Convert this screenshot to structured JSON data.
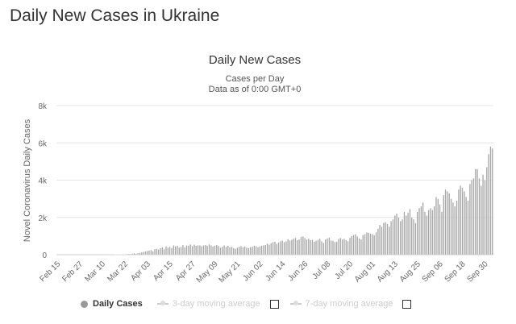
{
  "page_title": "Daily New Cases in Ukraine",
  "chart_data": {
    "type": "bar",
    "title": "Daily New Cases",
    "subtitle_1": "Cases per Day",
    "subtitle_2": "Data as of 0:00 GMT+0",
    "ylabel": "Novel Coronavirus Daily Cases",
    "xlabel": "",
    "ylim": [
      0,
      8000
    ],
    "y_ticks": [
      "0",
      "2k",
      "4k",
      "6k",
      "8k"
    ],
    "x_tick_labels": [
      "Feb 15",
      "Feb 27",
      "Mar 10",
      "Mar 22",
      "Apr 03",
      "Apr 15",
      "Apr 27",
      "May 09",
      "May 21",
      "Jun 02",
      "Jun 14",
      "Jun 26",
      "Jul 08",
      "Jul 20",
      "Aug 01",
      "Aug 13",
      "Aug 25",
      "Sep 06",
      "Sep 18",
      "Sep 30"
    ],
    "x_tick_every_days": 12,
    "grid": true,
    "bar_color": "#a6a6a6",
    "values": [
      0,
      0,
      0,
      0,
      0,
      0,
      0,
      0,
      0,
      0,
      0,
      0,
      0,
      0,
      0,
      0,
      0,
      0,
      0,
      0,
      0,
      0,
      0,
      0,
      0,
      1,
      1,
      2,
      1,
      3,
      4,
      5,
      10,
      9,
      14,
      20,
      15,
      30,
      40,
      35,
      60,
      75,
      50,
      80,
      100,
      120,
      150,
      180,
      200,
      220,
      250,
      180,
      300,
      320,
      280,
      350,
      400,
      300,
      450,
      380,
      420,
      360,
      500,
      450,
      480,
      380,
      420,
      520,
      400,
      500,
      480,
      550,
      460,
      540,
      480,
      510,
      500,
      450,
      500,
      520,
      480,
      550,
      500,
      450,
      480,
      520,
      470,
      380,
      420,
      500,
      430,
      480,
      400,
      420,
      350,
      320,
      380,
      420,
      460,
      400,
      440,
      380,
      350,
      400,
      430,
      480,
      460,
      400,
      450,
      480,
      500,
      520,
      600,
      540,
      620,
      680,
      700,
      580,
      660,
      720,
      760,
      680,
      720,
      840,
      760,
      800,
      860,
      900,
      780,
      820,
      960,
      980,
      900,
      820,
      860,
      780,
      800,
      700,
      750,
      800,
      860,
      720,
      640,
      820,
      880,
      920,
      760,
      740,
      680,
      700,
      850,
      900,
      820,
      860,
      780,
      720,
      900,
      1000,
      1060,
      1100,
      980,
      880,
      820,
      1060,
      1100,
      1200,
      1180,
      1130,
      1100,
      1050,
      1200,
      1400,
      1600,
      1500,
      1700,
      1750,
      1650,
      1500,
      1800,
      1900,
      2100,
      2200,
      2000,
      1800,
      1900,
      2300,
      2100,
      2250,
      2450,
      2000,
      1900,
      1700,
      2300,
      2500,
      2600,
      2800,
      2300,
      2100,
      2400,
      2500,
      2400,
      2600,
      3100,
      3000,
      2700,
      2300,
      3200,
      3500,
      3400,
      3300,
      3000,
      2800,
      2600,
      2900,
      3500,
      3700,
      3600,
      3400,
      3100,
      2900,
      3800,
      4000,
      4100,
      4600,
      4600,
      4100,
      3700,
      4300,
      4000,
      4700,
      5400,
      5800,
      5700
    ],
    "legend": [
      {
        "label": "Daily Cases",
        "active": true
      },
      {
        "label": "3-day moving average",
        "active": false
      },
      {
        "label": "7-day moving average",
        "active": false
      }
    ],
    "legend_placement": "bottom"
  }
}
